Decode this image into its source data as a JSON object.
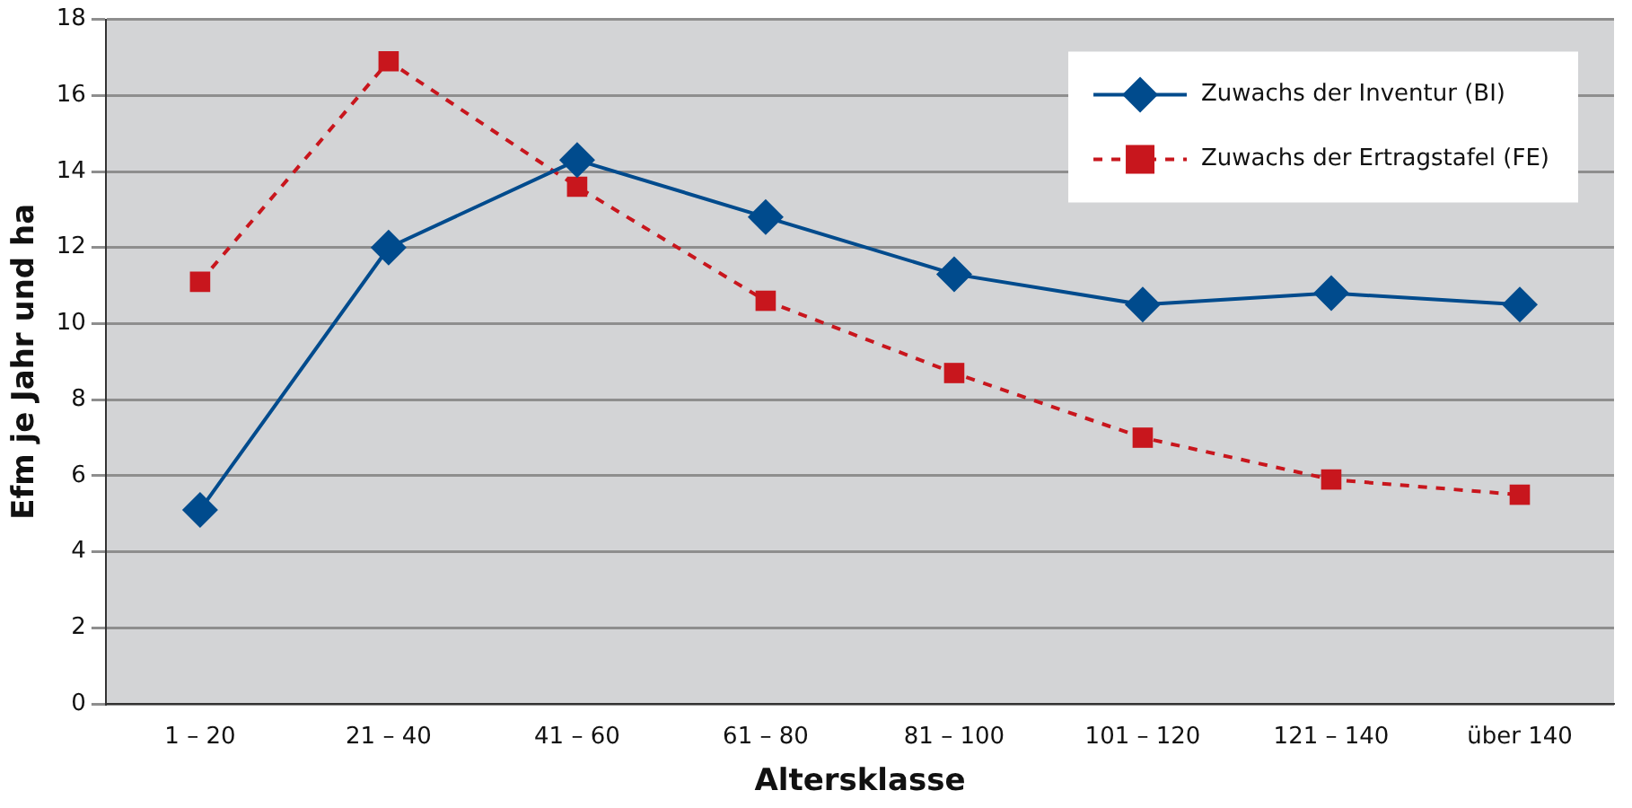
{
  "chart_data": {
    "type": "line",
    "xlabel": "Altersklasse",
    "ylabel": "Efm je Jahr und ha",
    "categories": [
      "1 – 20",
      "21 – 40",
      "41 – 60",
      "61 – 80",
      "81 – 100",
      "101 – 120",
      "121 – 140",
      "über 140"
    ],
    "series": [
      {
        "name": "Zuwachs der Inventur (BI)",
        "color": "#004b8d",
        "marker": "diamond",
        "line_style": "solid",
        "values": [
          5.1,
          12.0,
          14.3,
          12.8,
          11.3,
          10.5,
          10.8,
          10.5
        ]
      },
      {
        "name": "Zuwachs der Ertragstafel (FE)",
        "color": "#c8161d",
        "marker": "square",
        "line_style": "dashed",
        "values": [
          11.1,
          16.9,
          13.6,
          10.6,
          8.7,
          7.0,
          5.9,
          5.5
        ]
      }
    ],
    "ylim": [
      0,
      18
    ],
    "yticks": [
      0,
      2,
      4,
      6,
      8,
      10,
      12,
      14,
      16,
      18
    ],
    "grid": "y",
    "legend": "top right"
  }
}
